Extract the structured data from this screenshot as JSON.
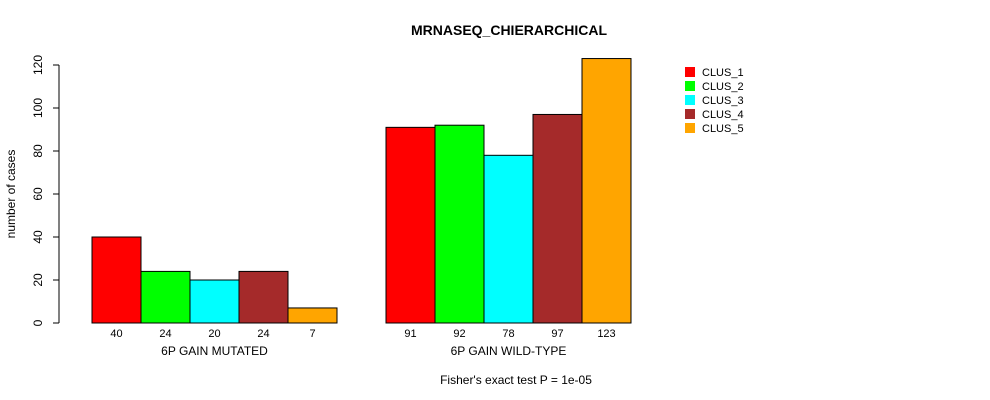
{
  "chart_data": {
    "type": "bar",
    "title": "MRNASEQ_CHIERARCHICAL",
    "ylabel": "number of cases",
    "xlabel": "Fisher's exact test P = 1e-05",
    "ylim": [
      0,
      120
    ],
    "yticks": [
      0,
      20,
      40,
      60,
      80,
      100,
      120
    ],
    "grid": false,
    "legend_position": "top-right",
    "categories": [
      "6P GAIN MUTATED",
      "6P GAIN WILD-TYPE"
    ],
    "series": [
      {
        "name": "CLUS_1",
        "color": "#ff0000",
        "values": [
          40,
          91
        ]
      },
      {
        "name": "CLUS_2",
        "color": "#00ff00",
        "values": [
          24,
          92
        ]
      },
      {
        "name": "CLUS_3",
        "color": "#00ffff",
        "values": [
          20,
          78
        ]
      },
      {
        "name": "CLUS_4",
        "color": "#a52a2a",
        "values": [
          24,
          97
        ]
      },
      {
        "name": "CLUS_5",
        "color": "#ffa500",
        "values": [
          7,
          123
        ]
      }
    ]
  }
}
